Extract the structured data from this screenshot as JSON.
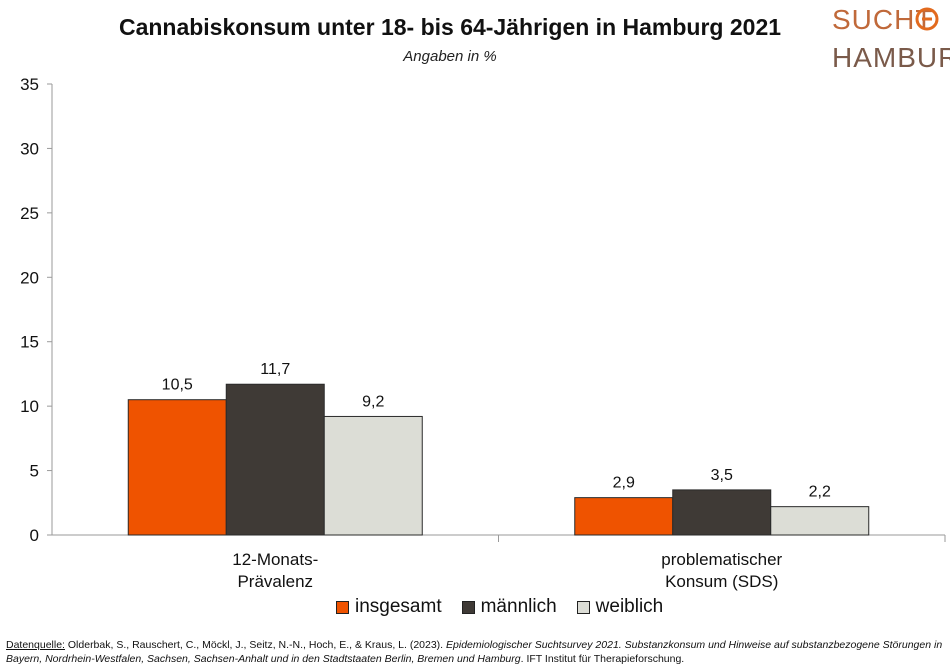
{
  "header": {
    "title": "Cannabiskonsum unter 18- bis 64-Jährigen in Hamburg 2021",
    "subtitle": "Angaben in %"
  },
  "logo": {
    "line1": "SUCHT",
    "line2": "HAMBURG"
  },
  "source": {
    "label": "Datenquelle:",
    "authors": " Olderbak, S., Rauschert, C., Möckl, J., Seitz, N.-N., Hoch, E., & Kraus, L. (2023). ",
    "title_italic": "Epidemiologischer Suchtsurvey 2021. Substanzkonsum und Hinweise auf substanzbezogene Störungen in Bayern, Nordrhein-Westfalen, Sachsen, Sachsen-Anhalt und in den Stadtstaaten Berlin, Bremen und Hamburg",
    "publisher": ". IFT Institut für Therapieforschung."
  },
  "chart_data": {
    "type": "bar",
    "title": "Cannabiskonsum unter 18- bis 64-Jährigen in Hamburg 2021",
    "subtitle": "Angaben in %",
    "categories": [
      [
        "12-Monats-",
        "Prävalenz"
      ],
      [
        "problematischer",
        "Konsum (SDS)"
      ]
    ],
    "series": [
      {
        "name": "insgesamt",
        "color": "#ef5300",
        "values": [
          10.5,
          2.9
        ],
        "labels": [
          "10,5",
          "2,9"
        ]
      },
      {
        "name": "männlich",
        "color": "#3f3a36",
        "values": [
          11.7,
          3.5
        ],
        "labels": [
          "11,7",
          "3,5"
        ]
      },
      {
        "name": "weiblich",
        "color": "#dcddd6",
        "values": [
          9.2,
          2.2
        ],
        "labels": [
          "9,2",
          "2,2"
        ]
      }
    ],
    "yticks": [
      0,
      5,
      10,
      15,
      20,
      25,
      30,
      35
    ],
    "ylim": [
      0,
      35
    ],
    "grid": false,
    "legend_position": "bottom"
  }
}
